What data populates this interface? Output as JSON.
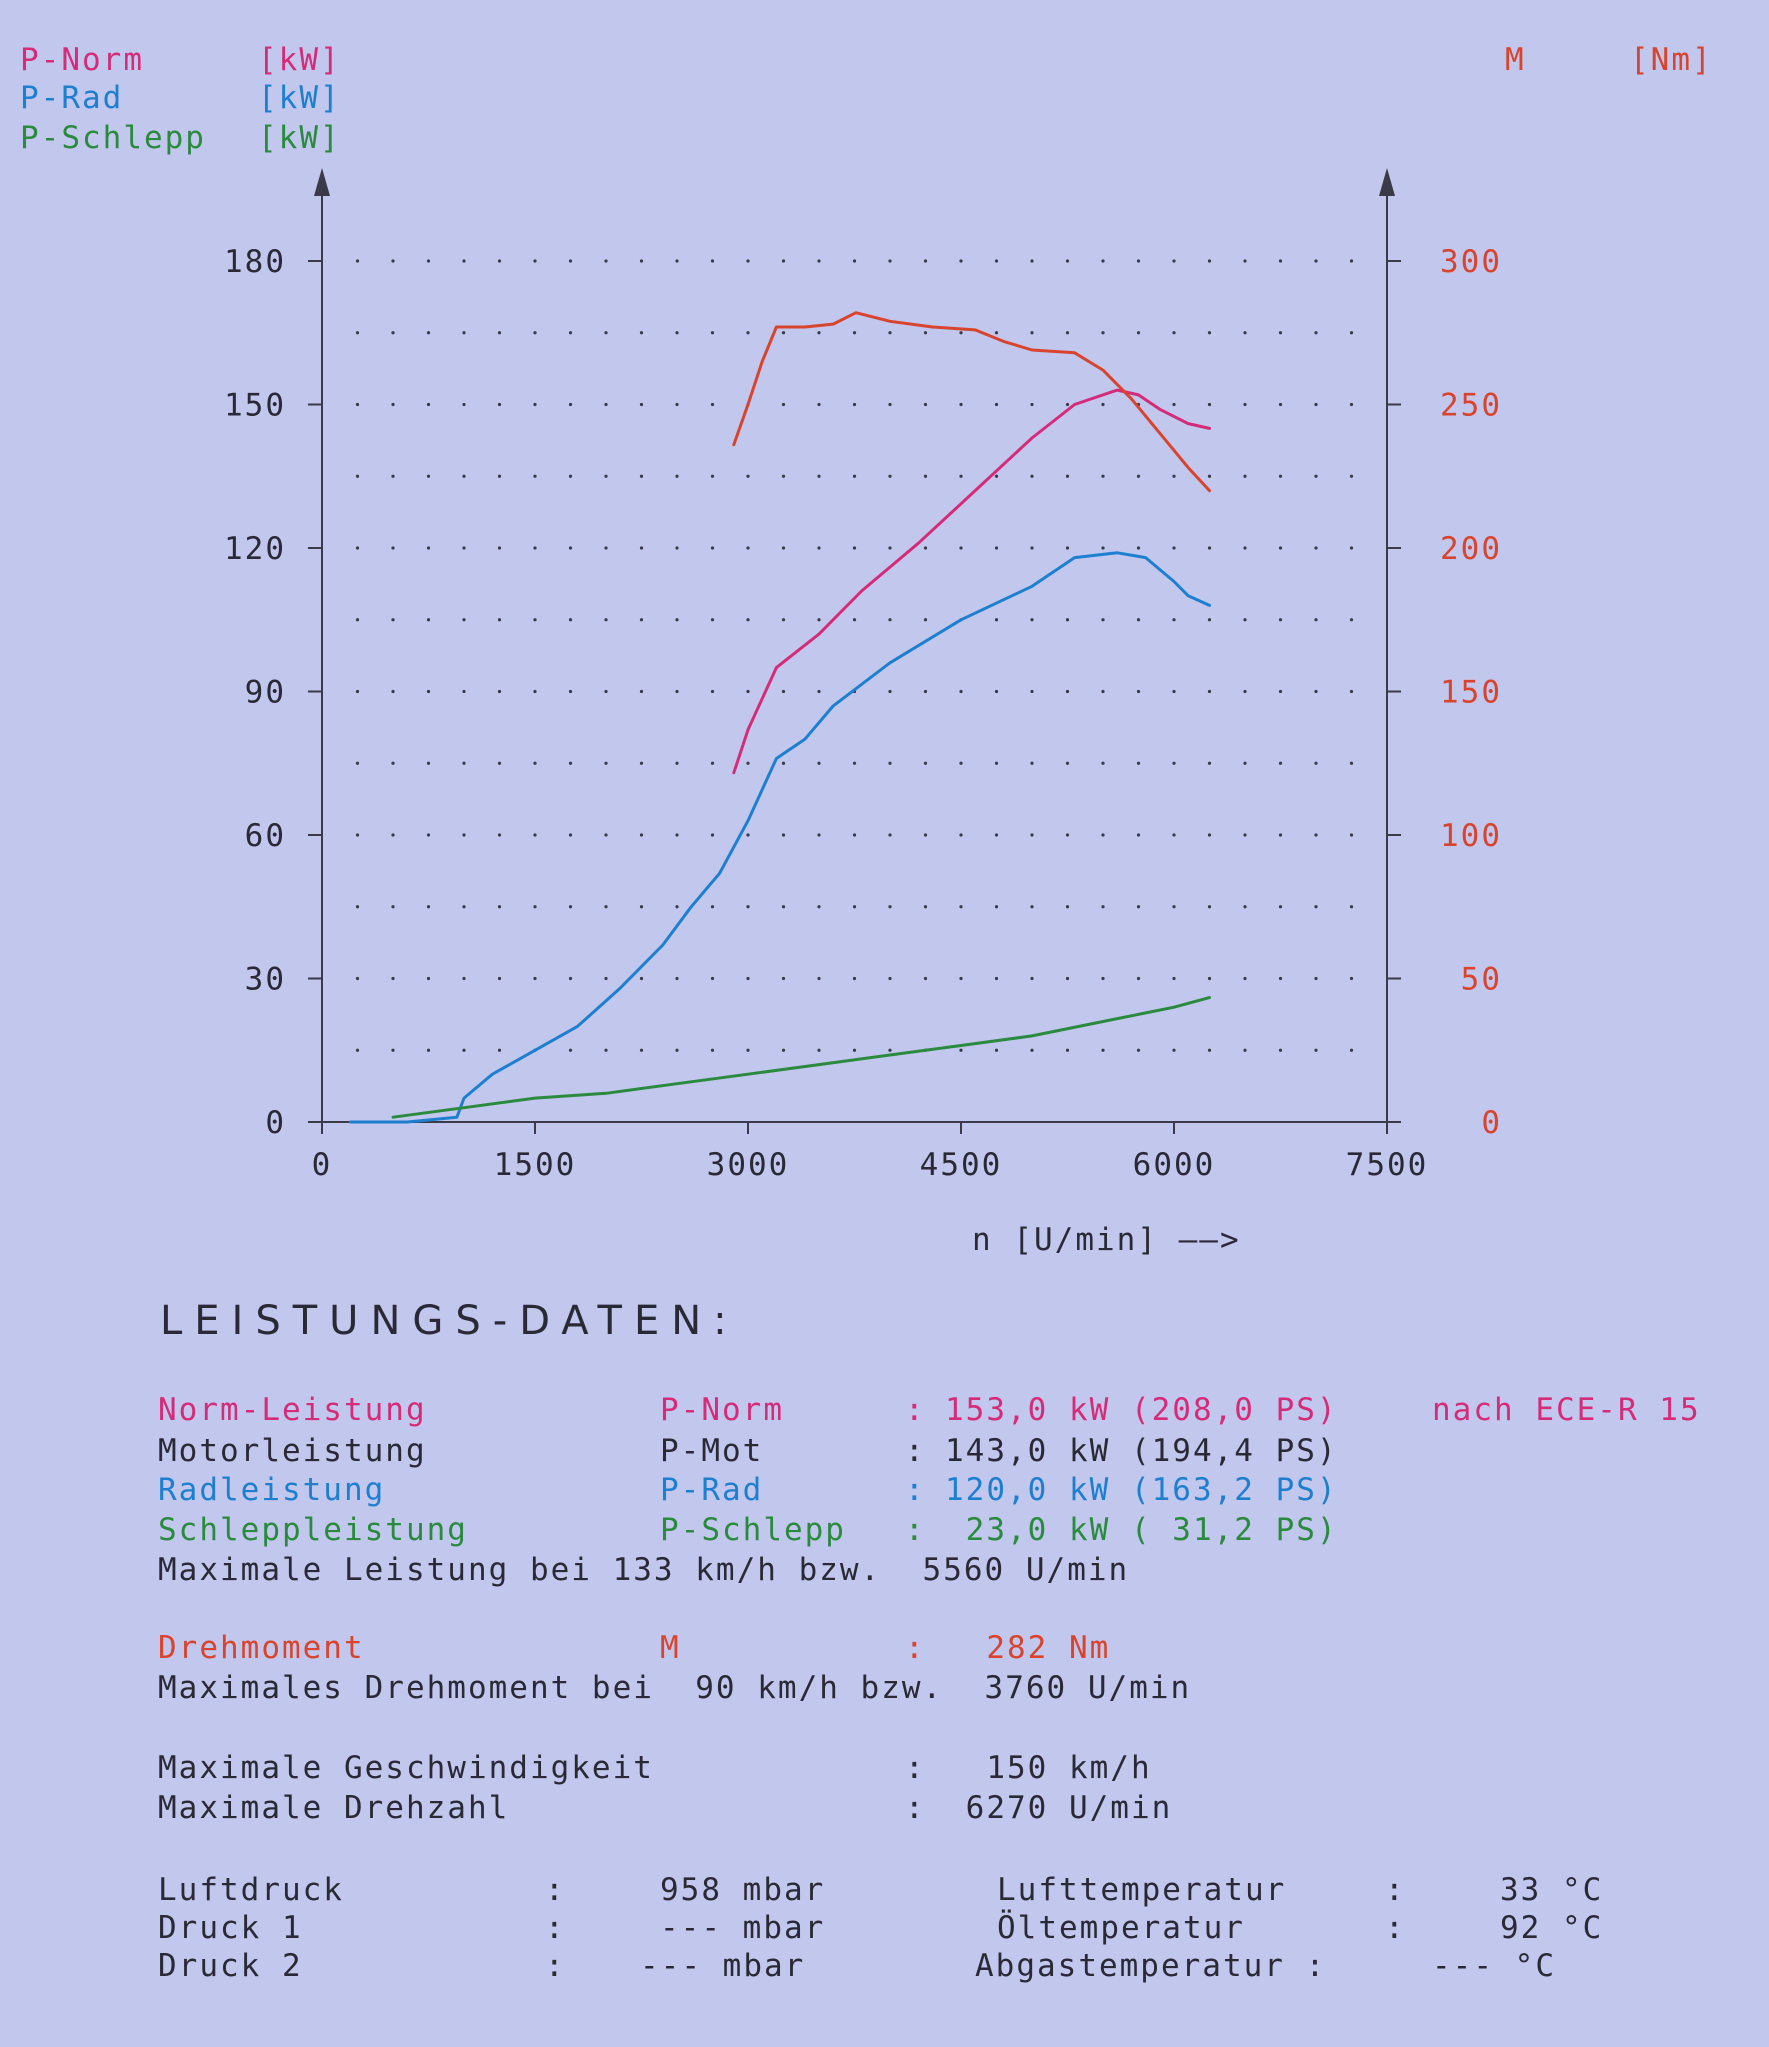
{
  "legend": [
    {
      "name": "P-Norm",
      "unit": "[kW]"
    },
    {
      "name": "P-Rad",
      "unit": "[kW]"
    },
    {
      "name": "P-Schlepp",
      "unit": "[kW]"
    },
    {
      "name": "M",
      "unit": "[Nm]"
    }
  ],
  "colors": {
    "p_norm": "#d42c78",
    "p_rad": "#1e7fce",
    "p_schlepp": "#2a8a3e",
    "torque": "#d8442e",
    "text": "#2a2a36",
    "paper": "#c2c7ee"
  },
  "chart_data": {
    "type": "line",
    "xlabel": "n [U/min] ——>",
    "x_ticks": [
      "0",
      "1500",
      "3000",
      "4500",
      "6000",
      "7500"
    ],
    "y_left_ticks": [
      "0",
      "30",
      "60",
      "90",
      "120",
      "150",
      "180"
    ],
    "y_right_ticks": [
      "0",
      "50",
      "100",
      "150",
      "200",
      "250",
      "300"
    ],
    "xlim": [
      0,
      7500
    ],
    "ylim_left": [
      0,
      180
    ],
    "ylim_right": [
      0,
      300
    ],
    "grid": true,
    "series": [
      {
        "name": "P-Norm",
        "axis": "left",
        "x": [
          2900,
          3000,
          3200,
          3500,
          3800,
          4200,
          4600,
          5000,
          5300,
          5600,
          5750,
          5900,
          6100,
          6250
        ],
        "values": [
          73,
          82,
          95,
          102,
          111,
          121,
          132,
          143,
          150,
          153,
          152,
          149,
          146,
          145
        ]
      },
      {
        "name": "P-Rad",
        "axis": "left",
        "x": [
          200,
          600,
          950,
          1000,
          1200,
          1500,
          1800,
          2100,
          2400,
          2600,
          2800,
          3000,
          3200,
          3400,
          3600,
          4000,
          4500,
          5000,
          5300,
          5600,
          5800,
          6000,
          6100,
          6250
        ],
        "values": [
          0,
          0,
          1,
          5,
          10,
          15,
          20,
          28,
          37,
          45,
          52,
          63,
          76,
          80,
          87,
          96,
          105,
          112,
          118,
          119,
          118,
          113,
          110,
          108
        ]
      },
      {
        "name": "P-Schlepp",
        "axis": "left",
        "x": [
          500,
          1000,
          1500,
          2000,
          2500,
          3000,
          3500,
          4000,
          4500,
          5000,
          5500,
          6000,
          6250
        ],
        "values": [
          1,
          3,
          5,
          6,
          8,
          10,
          12,
          14,
          16,
          18,
          21,
          24,
          26
        ]
      },
      {
        "name": "M",
        "axis": "right",
        "x": [
          2900,
          3000,
          3100,
          3200,
          3400,
          3600,
          3760,
          4000,
          4300,
          4600,
          4800,
          5000,
          5300,
          5500,
          5700,
          5900,
          6100,
          6250
        ],
        "values": [
          236,
          250,
          265,
          277,
          277,
          278,
          282,
          279,
          277,
          276,
          272,
          269,
          268,
          262,
          252,
          240,
          228,
          220
        ]
      }
    ]
  },
  "report": {
    "heading": "LEISTUNGS-DATEN:",
    "rows": [
      {
        "color": "p_norm",
        "cells": [
          {
            "text": "Norm-Leistung",
            "col": 0
          },
          {
            "text": "P-Norm",
            "col": 1
          },
          {
            "text": ":",
            "col": 2
          },
          {
            "text": "153,0 kW (208,0 PS)",
            "col": 3
          },
          {
            "text": "nach ECE-R 15",
            "col": 4
          }
        ]
      },
      {
        "color": "text",
        "cells": [
          {
            "text": "Motorleistung",
            "col": 0
          },
          {
            "text": "P-Mot",
            "col": 1
          },
          {
            "text": ":",
            "col": 2
          },
          {
            "text": "143,0 kW (194,4 PS)",
            "col": 3
          }
        ]
      },
      {
        "color": "p_rad",
        "cells": [
          {
            "text": "Radleistung",
            "col": 0
          },
          {
            "text": "P-Rad",
            "col": 1
          },
          {
            "text": ":",
            "col": 2
          },
          {
            "text": "120,0 kW (163,2 PS)",
            "col": 3
          }
        ]
      },
      {
        "color": "p_schlepp",
        "cells": [
          {
            "text": "Schleppleistung",
            "col": 0
          },
          {
            "text": "P-Schlepp",
            "col": 1
          },
          {
            "text": ":",
            "col": 2
          },
          {
            "text": " 23,0 kW ( 31,2 PS)",
            "col": 3
          }
        ]
      },
      {
        "color": "text",
        "cells": [
          {
            "text": "Maximale Leistung bei 133 km/h bzw.  5560 U/min",
            "col": 0
          }
        ]
      },
      {
        "color": "torque",
        "cells": [
          {
            "text": "Drehmoment",
            "col": 0
          },
          {
            "text": "M",
            "col": 1
          },
          {
            "text": ":",
            "col": 2
          },
          {
            "text": "  282 Nm",
            "col": 3
          }
        ]
      },
      {
        "color": "text",
        "cells": [
          {
            "text": "Maximales Drehmoment bei  90 km/h bzw.  3760 U/min",
            "col": 0
          }
        ]
      },
      {
        "color": "text",
        "cells": [
          {
            "text": "Maximale Geschwindigkeit",
            "col": 0
          },
          {
            "text": ":",
            "col": 2
          },
          {
            "text": "  150 km/h",
            "col": 3
          }
        ]
      },
      {
        "color": "text",
        "cells": [
          {
            "text": "Maximale Drehzahl",
            "col": 0
          },
          {
            "text": ":",
            "col": 2
          },
          {
            "text": " 6270 U/min",
            "col": 3
          }
        ]
      },
      {
        "color": "text",
        "cells": [
          {
            "text": "Luftdruck",
            "col": 0
          },
          {
            "text": ":",
            "col": 5
          },
          {
            "text": "958 mbar",
            "col": 6
          },
          {
            "text": "Lufttemperatur",
            "col": 7
          },
          {
            "text": ":",
            "col": 8
          },
          {
            "text": "33 °C",
            "col": 9
          }
        ]
      },
      {
        "color": "text",
        "cells": [
          {
            "text": "Druck 1",
            "col": 0
          },
          {
            "text": ":",
            "col": 5
          },
          {
            "text": "--- mbar",
            "col": 6
          },
          {
            "text": "Öltemperatur",
            "col": 7
          },
          {
            "text": ":",
            "col": 8
          },
          {
            "text": "92 °C",
            "col": 9
          }
        ]
      },
      {
        "color": "text",
        "cells": [
          {
            "text": "Druck 2",
            "col": 0
          },
          {
            "text": ":",
            "col": 5
          },
          {
            "text": "--- mbar",
            "col": 6
          },
          {
            "text": "Abgastemperatur :",
            "col": 7
          },
          {
            "text": "--- °C",
            "col": 9
          }
        ]
      }
    ]
  }
}
